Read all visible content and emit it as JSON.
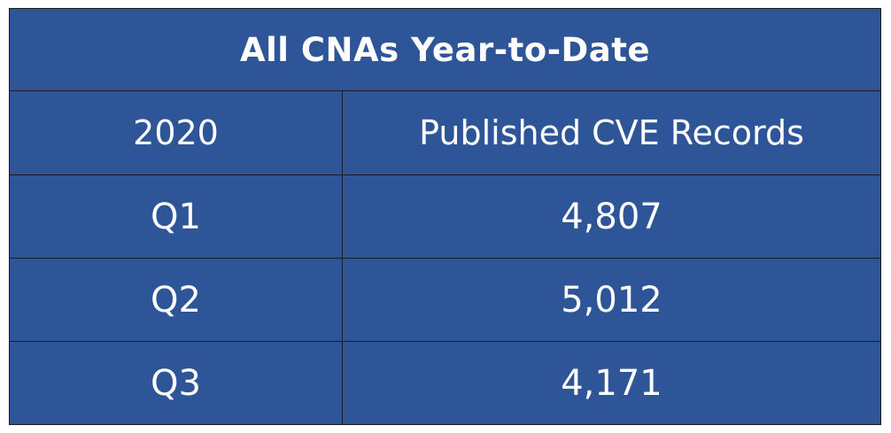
{
  "chart_data": {
    "type": "table",
    "title": "All CNAs Year-to-Date",
    "columns": [
      "2020",
      "Published CVE Records"
    ],
    "rows": [
      {
        "label": "Q1",
        "value": "4,807"
      },
      {
        "label": "Q2",
        "value": "5,012"
      },
      {
        "label": "Q3",
        "value": "4,171"
      }
    ]
  },
  "colors": {
    "cell_background": "#2e5597",
    "text": "#ffffff",
    "border": "#1c1c1c"
  }
}
